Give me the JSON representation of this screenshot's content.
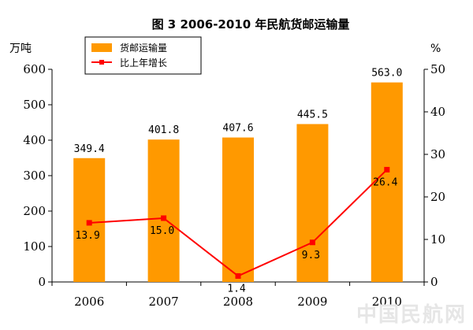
{
  "chart_data": {
    "type": "bar+line",
    "title": "图 3   2006-2010 年民航货邮运输量",
    "categories": [
      "2006",
      "2007",
      "2008",
      "2009",
      "2010"
    ],
    "left_unit": "万吨",
    "right_unit": "%",
    "left_ticks": [
      0,
      100,
      200,
      300,
      400,
      500,
      600
    ],
    "right_ticks": [
      0,
      10,
      20,
      30,
      40,
      50
    ],
    "ylim_left": [
      0,
      600
    ],
    "ylim_right": [
      0,
      50
    ],
    "series": [
      {
        "name": "货邮运输量",
        "type": "bar",
        "axis": "left",
        "values": [
          349.4,
          401.8,
          407.6,
          445.5,
          563.0
        ],
        "labels": [
          "349.4",
          "401.8",
          "407.6",
          "445.5",
          "563.0"
        ]
      },
      {
        "name": "比上年增长",
        "type": "line",
        "axis": "right",
        "values": [
          13.9,
          15.0,
          1.4,
          9.3,
          26.4
        ],
        "labels": [
          "13.9",
          "15.0",
          "1.4",
          "9.3",
          "26.4"
        ]
      }
    ],
    "legend_position": "top-left",
    "colors": {
      "bar": "#ff9900",
      "line": "#ff0000"
    },
    "watermark": "中国民航网"
  }
}
